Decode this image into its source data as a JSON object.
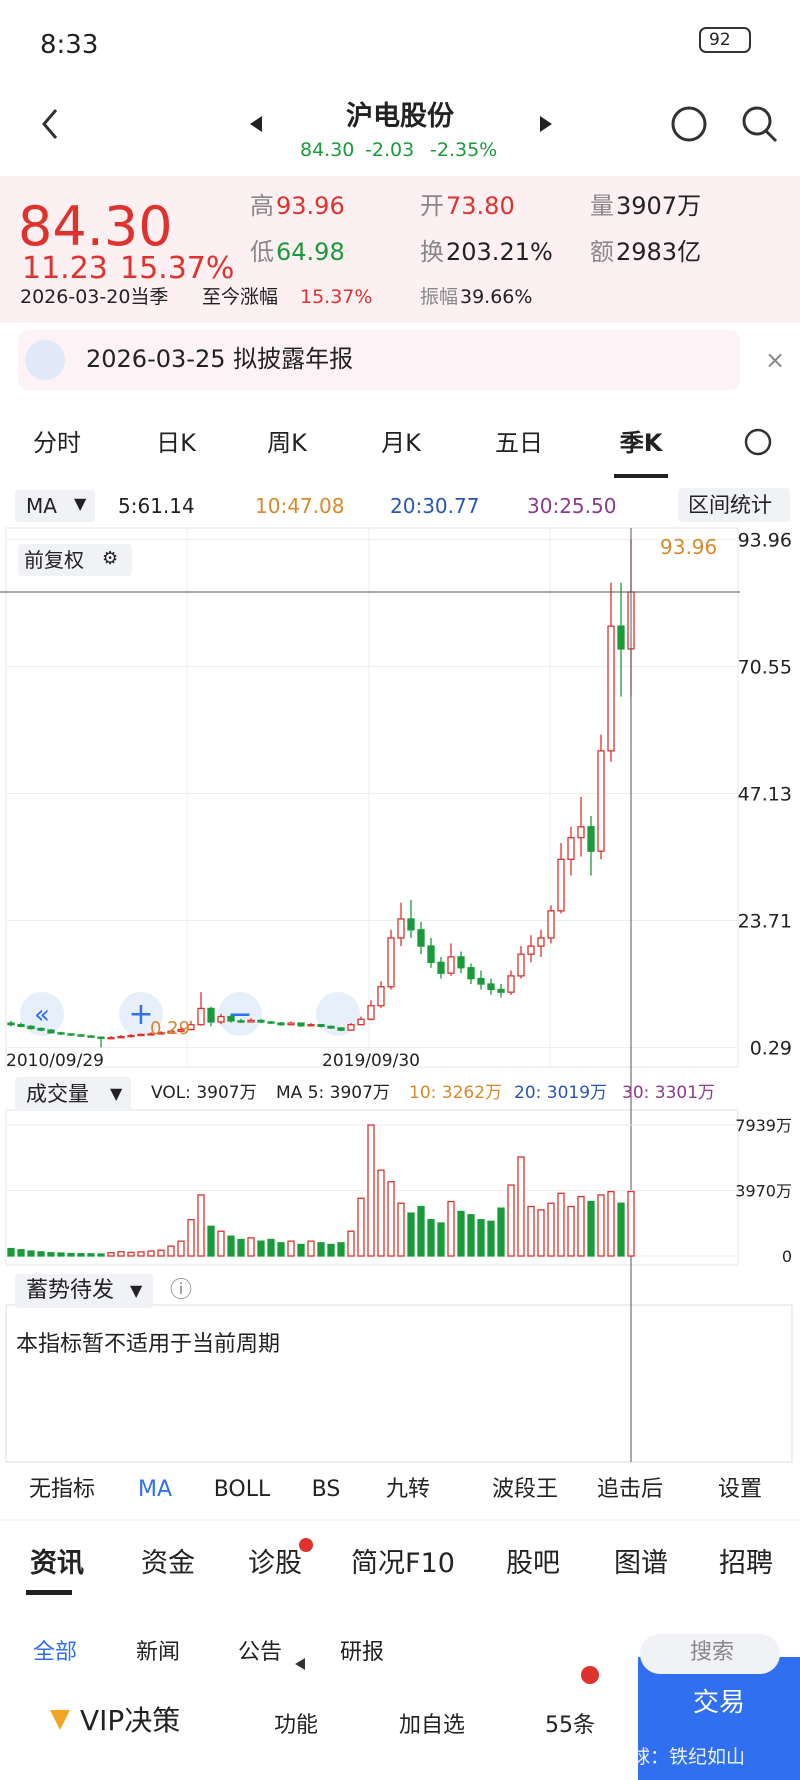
{
  "status": {
    "time": "8:33",
    "battery": "92"
  },
  "header": {
    "title": "沪电股份",
    "price": "84.30",
    "change": "-2.03",
    "percent": "-2.35%"
  },
  "quote": {
    "price": "84.30",
    "change": "11.23",
    "percent": "15.37%",
    "period": "2026-03-20当季",
    "since_label": "至今涨幅",
    "since": "15.37%",
    "stats": [
      {
        "label": "高",
        "value": "93.96"
      },
      {
        "label": "开",
        "value": "73.80"
      },
      {
        "label": "量",
        "value": "3907万"
      },
      {
        "label": "低",
        "value": "64.98"
      },
      {
        "label": "换",
        "value": "203.21%"
      },
      {
        "label": "额",
        "value": "2983亿"
      },
      {
        "label": "振幅",
        "value": "39.66%"
      }
    ]
  },
  "notice": "2026-03-25 拟披露年报",
  "tabs": [
    "分时",
    "日K",
    "周K",
    "月K",
    "五日",
    "季K"
  ],
  "ma_bar": {
    "selector": "MA",
    "items": [
      "5:61.14",
      "10:47.08",
      "20:30.77",
      "30:25.50"
    ],
    "range": "区间统计"
  },
  "kline": {
    "type": "candlestick",
    "adjust": "前复权",
    "max_label": "93.96",
    "min_label": "0.29",
    "up_color": "#e0322d",
    "down_color": "#1a9b3a",
    "categories": [
      "2010/09/29",
      null,
      null,
      null,
      null,
      null,
      null,
      null,
      null,
      null,
      null,
      null,
      null,
      null,
      null,
      null,
      null,
      null,
      null,
      null,
      null,
      null,
      null,
      null,
      null,
      null,
      null,
      null,
      null,
      null,
      null,
      null,
      null,
      null,
      null,
      null,
      "2019/09/30",
      null,
      null,
      null,
      null,
      null,
      null,
      null,
      null,
      null,
      null,
      null,
      null,
      null,
      null,
      null,
      null,
      null,
      null,
      null,
      null,
      null,
      null,
      null,
      null,
      null,
      null
    ],
    "open": [
      4.8,
      4.5,
      4.2,
      3.8,
      3.5,
      3.0,
      2.8,
      2.6,
      2.4,
      2.2,
      2.0,
      2.1,
      2.3,
      2.5,
      2.7,
      2.8,
      3.0,
      3.3,
      3.6,
      4.5,
      7.5,
      5.0,
      6.0,
      5.2,
      5.0,
      5.3,
      5.0,
      4.8,
      4.5,
      4.8,
      4.3,
      4.5,
      4.2,
      3.9,
      3.5,
      4.5,
      5.5,
      8.0,
      11.5,
      20.5,
      24.0,
      22.0,
      19.0,
      16.0,
      14.0,
      17.0,
      15.0,
      13.0,
      12.0,
      11.0,
      10.5,
      13.5,
      17.5,
      19.0,
      20.5,
      25.5,
      35.0,
      39.0,
      41.0,
      36.5,
      55.0,
      78.0,
      73.8
    ],
    "high": [
      5.2,
      4.9,
      4.4,
      4.0,
      3.7,
      3.2,
      2.9,
      2.8,
      2.6,
      2.3,
      2.4,
      2.6,
      2.8,
      2.9,
      3.1,
      3.3,
      3.6,
      4.0,
      5.2,
      10.5,
      7.8,
      6.5,
      6.2,
      5.6,
      5.7,
      5.5,
      5.2,
      5.0,
      5.1,
      4.9,
      4.8,
      4.6,
      4.3,
      4.0,
      4.8,
      6.0,
      9.0,
      12.5,
      22.0,
      27.0,
      27.5,
      23.5,
      20.5,
      17.0,
      19.5,
      18.0,
      15.8,
      14.5,
      13.0,
      12.0,
      14.5,
      19.0,
      21.0,
      22.0,
      26.5,
      38.0,
      41.0,
      46.5,
      43.0,
      58.0,
      86.0,
      86.0,
      93.96
    ],
    "low": [
      4.2,
      4.0,
      3.6,
      3.3,
      2.9,
      2.6,
      2.4,
      2.3,
      2.1,
      0.29,
      1.9,
      2.0,
      2.2,
      2.4,
      2.5,
      2.7,
      2.9,
      3.1,
      3.5,
      4.3,
      4.2,
      4.6,
      4.9,
      4.8,
      4.9,
      4.8,
      4.6,
      4.3,
      4.4,
      4.1,
      4.2,
      4.0,
      3.7,
      3.3,
      3.4,
      4.4,
      5.3,
      7.6,
      11.0,
      19.0,
      20.5,
      17.5,
      15.0,
      13.0,
      13.5,
      14.0,
      12.0,
      11.0,
      10.0,
      9.5,
      10.0,
      13.0,
      16.0,
      17.0,
      19.5,
      25.0,
      32.0,
      35.5,
      32.0,
      35.0,
      53.0,
      65.0,
      64.98
    ],
    "close": [
      4.5,
      4.2,
      3.8,
      3.5,
      3.0,
      2.8,
      2.6,
      2.4,
      2.2,
      2.0,
      2.1,
      2.3,
      2.5,
      2.7,
      2.8,
      3.0,
      3.3,
      3.6,
      4.5,
      7.5,
      5.0,
      6.0,
      5.2,
      5.0,
      5.3,
      5.0,
      4.8,
      4.5,
      4.8,
      4.3,
      4.5,
      4.2,
      3.9,
      3.5,
      4.5,
      5.5,
      8.0,
      11.5,
      20.5,
      24.0,
      22.0,
      19.0,
      16.0,
      14.0,
      17.0,
      15.0,
      13.0,
      12.0,
      11.0,
      10.5,
      13.5,
      17.5,
      19.0,
      20.5,
      25.5,
      35.0,
      39.0,
      41.0,
      36.5,
      55.0,
      78.0,
      73.8,
      84.3
    ],
    "ylim": [
      -3.3,
      96.1
    ],
    "yticks": [
      0.29,
      23.71,
      47.13,
      70.55,
      93.96
    ],
    "grid": true
  },
  "volume": {
    "type": "bar",
    "label": "成交量",
    "legend": [
      "VOL: 3907万",
      "MA 5: 3907万",
      "10: 3262万",
      "20: 3019万",
      "30: 3301万"
    ],
    "values": [
      450,
      380,
      300,
      250,
      200,
      180,
      150,
      140,
      130,
      120,
      200,
      260,
      220,
      250,
      300,
      350,
      600,
      900,
      2200,
      3700,
      1800,
      1500,
      1200,
      1000,
      1100,
      900,
      1000,
      800,
      900,
      700,
      900,
      800,
      700,
      800,
      1500,
      3500,
      7939,
      5200,
      4500,
      3200,
      2600,
      3000,
      2200,
      2000,
      3300,
      2700,
      2500,
      2200,
      2100,
      2900,
      4300,
      6000,
      3000,
      2800,
      3200,
      3800,
      3000,
      3600,
      3300,
      3700,
      3900,
      3200,
      3907
    ],
    "ylim": [
      0,
      7939
    ],
    "yticks": [
      {
        "value": 7939,
        "label": "7939万"
      },
      {
        "value": 3970,
        "label": "3970万"
      },
      0
    ]
  },
  "indicator": {
    "name": "蓄势待发",
    "message": "本指标暂不适用于当前周期"
  },
  "indicator_tabs": [
    "无指标",
    "MA",
    "BOLL",
    "BS",
    "九转",
    "波段王",
    "追击后",
    "设置"
  ],
  "news_tabs": [
    "资讯",
    "资金",
    "诊股",
    "简况F10",
    "股吧",
    "图谱",
    "招聘"
  ],
  "sub_tabs": [
    "全部",
    "新闻",
    "公告",
    "研报"
  ],
  "search": "搜索",
  "bottom": {
    "vip": "VIP决策",
    "function": "功能",
    "watch": "加自选",
    "ask": "55条",
    "trade": "交易"
  },
  "watermark": "雪球：铁纪如山"
}
